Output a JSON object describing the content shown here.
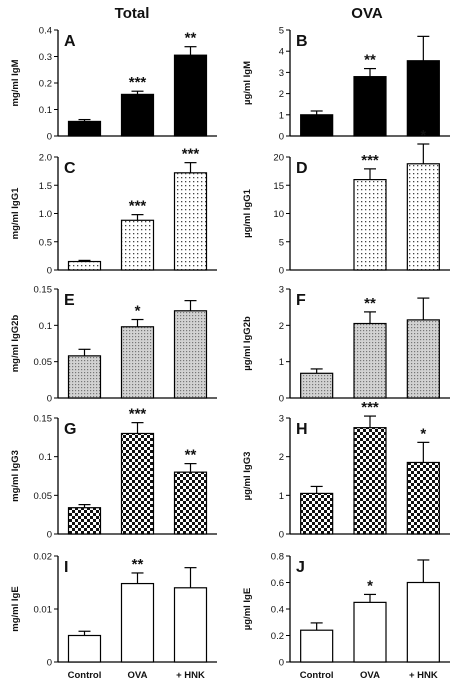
{
  "headers": {
    "left": "Total",
    "right": "OVA"
  },
  "categories": [
    "Control",
    "OVA",
    "+ HNK"
  ],
  "chart_data": [
    {
      "type": "bar",
      "panel": "A",
      "ylabel": "mg/ml IgM",
      "ylim": [
        0,
        0.4
      ],
      "yticks": [
        "0",
        "0.1",
        "0.2",
        "0.3",
        "0.4"
      ],
      "tick_values": [
        0,
        0.1,
        0.2,
        0.3,
        0.4
      ],
      "fill": "solid",
      "categories": [
        "Control",
        "OVA",
        "+ HNK"
      ],
      "values": [
        0.055,
        0.157,
        0.305
      ],
      "errors": [
        0.007,
        0.012,
        0.032
      ],
      "significance": [
        "",
        "***",
        "**"
      ]
    },
    {
      "type": "bar",
      "panel": "B",
      "ylabel": "µg/ml IgM",
      "ylim": [
        0,
        5
      ],
      "yticks": [
        "0",
        "1",
        "2",
        "3",
        "4",
        "5"
      ],
      "tick_values": [
        0,
        1,
        2,
        3,
        4,
        5
      ],
      "fill": "solid",
      "categories": [
        "Control",
        "OVA",
        "+ HNK"
      ],
      "values": [
        1.0,
        2.8,
        3.55
      ],
      "errors": [
        0.18,
        0.38,
        1.15
      ],
      "significance": [
        "",
        "**",
        ""
      ]
    },
    {
      "type": "bar",
      "panel": "C",
      "ylabel": "mg/ml IgG1",
      "ylim": [
        0,
        2.0
      ],
      "yticks": [
        "0",
        "0.5",
        "1.0",
        "1.5",
        "2.0"
      ],
      "tick_values": [
        0,
        0.5,
        1.0,
        1.5,
        2.0
      ],
      "fill": "dots",
      "categories": [
        "Control",
        "OVA",
        "+ HNK"
      ],
      "values": [
        0.15,
        0.88,
        1.72
      ],
      "errors": [
        0.02,
        0.1,
        0.18
      ],
      "significance": [
        "",
        "***",
        "***"
      ]
    },
    {
      "type": "bar",
      "panel": "D",
      "ylabel": "µg/ml IgG1",
      "ylim": [
        0,
        20
      ],
      "yticks": [
        "0",
        "5",
        "10",
        "15",
        "20"
      ],
      "tick_values": [
        0,
        5,
        10,
        15,
        20
      ],
      "fill": "dots",
      "categories": [
        "Control",
        "OVA",
        "+ HNK"
      ],
      "values": [
        null,
        16.0,
        18.8
      ],
      "errors": [
        null,
        1.9,
        3.5
      ],
      "significance": [
        "",
        "***",
        "*"
      ]
    },
    {
      "type": "bar",
      "panel": "E",
      "ylabel": "mg/ml IgG2b",
      "ylim": [
        0,
        0.15
      ],
      "yticks": [
        "0",
        "0.05",
        "0.1",
        "0.15"
      ],
      "tick_values": [
        0,
        0.05,
        0.1,
        0.15
      ],
      "fill": "lines",
      "categories": [
        "Control",
        "OVA",
        "+ HNK"
      ],
      "values": [
        0.058,
        0.098,
        0.12
      ],
      "errors": [
        0.009,
        0.01,
        0.014
      ],
      "significance": [
        "",
        "*",
        ""
      ]
    },
    {
      "type": "bar",
      "panel": "F",
      "ylabel": "µg/ml IgG2b",
      "ylim": [
        0,
        3
      ],
      "yticks": [
        "0",
        "1",
        "2",
        "3"
      ],
      "tick_values": [
        0,
        1,
        2,
        3
      ],
      "fill": "lines",
      "categories": [
        "Control",
        "OVA",
        "+ HNK"
      ],
      "values": [
        0.68,
        2.05,
        2.15
      ],
      "errors": [
        0.12,
        0.32,
        0.6
      ],
      "significance": [
        "",
        "**",
        ""
      ]
    },
    {
      "type": "bar",
      "panel": "G",
      "ylabel": "mg/ml IgG3",
      "ylim": [
        0,
        0.15
      ],
      "yticks": [
        "0",
        "0.05",
        "0.1",
        "0.15"
      ],
      "tick_values": [
        0,
        0.05,
        0.1,
        0.15
      ],
      "fill": "checker",
      "categories": [
        "Control",
        "OVA",
        "+ HNK"
      ],
      "values": [
        0.034,
        0.13,
        0.08
      ],
      "errors": [
        0.004,
        0.014,
        0.011
      ],
      "significance": [
        "",
        "***",
        "**"
      ]
    },
    {
      "type": "bar",
      "panel": "H",
      "ylabel": "µg/ml IgG3",
      "ylim": [
        0,
        3
      ],
      "yticks": [
        "0",
        "1",
        "2",
        "3"
      ],
      "tick_values": [
        0,
        1,
        2,
        3
      ],
      "fill": "checker",
      "categories": [
        "Control",
        "OVA",
        "+ HNK"
      ],
      "values": [
        1.05,
        2.75,
        1.85
      ],
      "errors": [
        0.18,
        0.3,
        0.52
      ],
      "significance": [
        "",
        "***",
        "*"
      ]
    },
    {
      "type": "bar",
      "panel": "I",
      "ylabel": "mg/ml IgE",
      "ylim": [
        0,
        0.02
      ],
      "yticks": [
        "0",
        "0.01",
        "0.02"
      ],
      "tick_values": [
        0,
        0.01,
        0.02
      ],
      "fill": "white",
      "categories": [
        "Control",
        "OVA",
        "+ HNK"
      ],
      "values": [
        0.005,
        0.0148,
        0.014
      ],
      "errors": [
        0.0008,
        0.002,
        0.0038
      ],
      "significance": [
        "",
        "**",
        ""
      ]
    },
    {
      "type": "bar",
      "panel": "J",
      "ylabel": "µg/ml IgE",
      "ylim": [
        0,
        0.8
      ],
      "yticks": [
        "0",
        "0.2",
        "0.4",
        "0.6",
        "0.8"
      ],
      "tick_values": [
        0,
        0.2,
        0.4,
        0.6,
        0.8
      ],
      "fill": "white",
      "categories": [
        "Control",
        "OVA",
        "+ HNK"
      ],
      "values": [
        0.24,
        0.45,
        0.6
      ],
      "errors": [
        0.055,
        0.06,
        0.17
      ],
      "significance": [
        "",
        "*",
        ""
      ]
    }
  ]
}
